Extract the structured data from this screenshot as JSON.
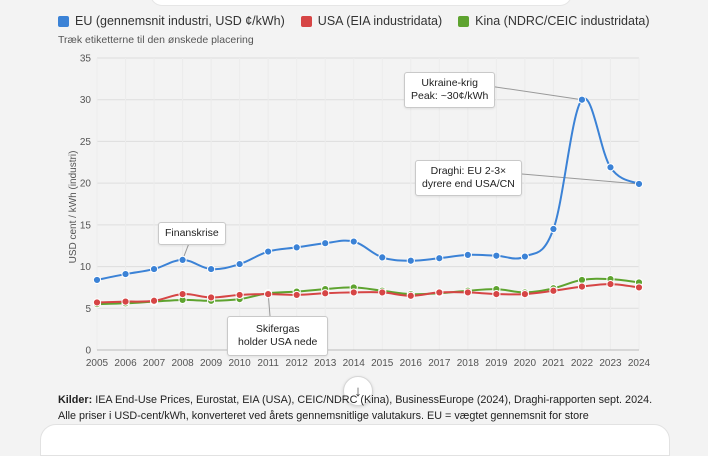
{
  "legend": [
    {
      "label": "EU (gennemsnit industri, USD ¢/kWh)",
      "color": "#3b82d6"
    },
    {
      "label": "USA (EIA industridata)",
      "color": "#d64545"
    },
    {
      "label": "Kina (NDRC/CEIC industridata)",
      "color": "#5ea32f"
    }
  ],
  "hint": "Træk etiketterne til den ønskede placering",
  "annotations": {
    "ukraine_line1": "Ukraine-krig",
    "ukraine_line2": "Peak: ~30¢/kWh",
    "draghi_line1": "Draghi: EU 2-3×",
    "draghi_line2": "dyrere end USA/CN",
    "finans": "Finanskrise",
    "skifer_line1": "Skifergas",
    "skifer_line2": "holder USA nede"
  },
  "sources": {
    "label": "Kilder:",
    "text": " IEA End-Use Prices, Eurostat, EIA (USA), CEIC/NDRC (Kina), BusinessEurope (2024), Draghi-rapporten sept. 2024. Alle priser i USD-cent/kWh, konverteret ved årets gennemsnitlige valutakurs. EU = vægtet gennemsnit for store industrikunder"
  },
  "scroll_icon": "arrow-down-icon",
  "chart_data": {
    "type": "line",
    "title": "",
    "xlabel": "",
    "ylabel": "USD cent / kWh (industri)",
    "ylim": [
      0,
      35
    ],
    "yticks": [
      0,
      5,
      10,
      15,
      20,
      25,
      30,
      35
    ],
    "grid": true,
    "x": [
      2005,
      2006,
      2007,
      2008,
      2009,
      2010,
      2011,
      2012,
      2013,
      2014,
      2015,
      2016,
      2017,
      2018,
      2019,
      2020,
      2021,
      2022,
      2023,
      2024
    ],
    "series": [
      {
        "name": "EU (gennemsnit industri, USD ¢/kWh)",
        "color": "#3b82d6",
        "values": [
          8.4,
          9.1,
          9.7,
          10.8,
          9.7,
          10.3,
          11.8,
          12.3,
          12.8,
          13.0,
          11.1,
          10.7,
          11.0,
          11.4,
          11.3,
          11.2,
          14.5,
          30.0,
          21.9,
          19.9
        ]
      },
      {
        "name": "USA (EIA industridata)",
        "color": "#d64545",
        "values": [
          5.7,
          5.8,
          5.9,
          6.7,
          6.3,
          6.6,
          6.7,
          6.6,
          6.8,
          6.9,
          6.9,
          6.5,
          6.9,
          6.9,
          6.7,
          6.7,
          7.1,
          7.6,
          7.9,
          7.5
        ]
      },
      {
        "name": "Kina (NDRC/CEIC industridata)",
        "color": "#5ea32f",
        "values": [
          5.5,
          5.6,
          5.8,
          6.0,
          5.9,
          6.1,
          6.8,
          7.0,
          7.3,
          7.5,
          7.1,
          6.7,
          6.8,
          7.1,
          7.3,
          6.9,
          7.4,
          8.4,
          8.5,
          8.1
        ]
      }
    ]
  }
}
